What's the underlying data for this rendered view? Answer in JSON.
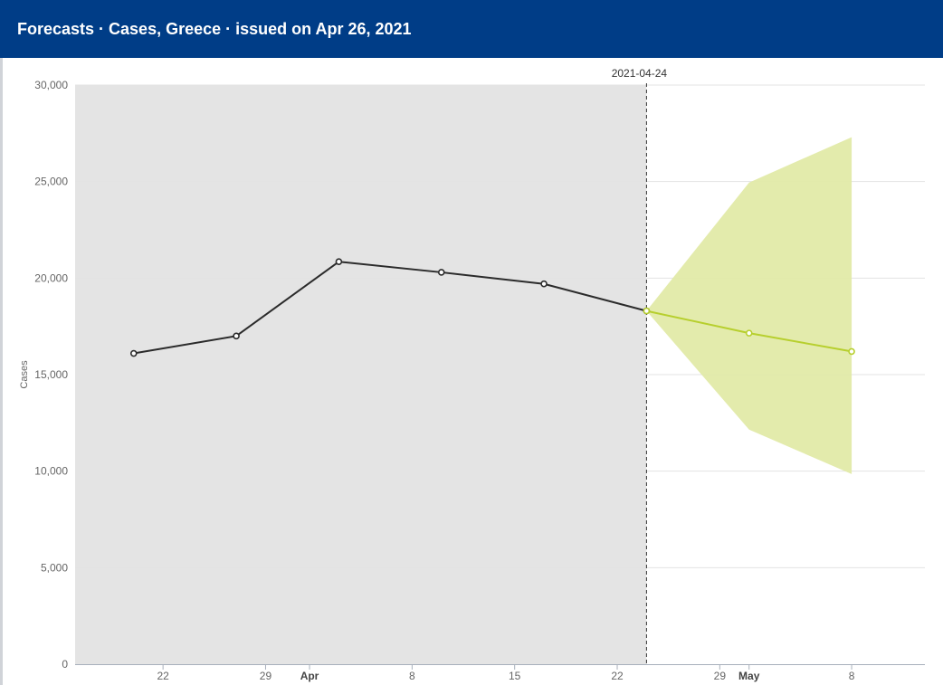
{
  "header": {
    "title": "Forecasts · Cases, Greece  · issued on Apr 26, 2021"
  },
  "colors": {
    "header_bg": "#003d87",
    "observed_line": "#2b2b2b",
    "forecast_line": "#b7cf2e",
    "forecast_band": "#e2eaa8",
    "history_bg": "#e4e4e4"
  },
  "chart_data": {
    "type": "line",
    "ylabel": "Cases",
    "xlabel": "",
    "ylim": [
      0,
      30000
    ],
    "xlim": [
      "2021-03-16",
      "2021-05-13"
    ],
    "y_ticks": [
      0,
      5000,
      10000,
      15000,
      20000,
      25000,
      30000
    ],
    "y_tick_labels": [
      "0",
      "5,000",
      "10,000",
      "15,000",
      "20,000",
      "25,000",
      "30,000"
    ],
    "x_ticks": [
      {
        "date": "2021-03-22",
        "label": "22",
        "bold": false
      },
      {
        "date": "2021-03-29",
        "label": "29",
        "bold": false
      },
      {
        "date": "2021-04-01",
        "label": "Apr",
        "bold": true
      },
      {
        "date": "2021-04-08",
        "label": "8",
        "bold": false
      },
      {
        "date": "2021-04-15",
        "label": "15",
        "bold": false
      },
      {
        "date": "2021-04-22",
        "label": "22",
        "bold": false
      },
      {
        "date": "2021-04-29",
        "label": "29",
        "bold": false
      },
      {
        "date": "2021-05-01",
        "label": "May",
        "bold": true
      },
      {
        "date": "2021-05-08",
        "label": "8",
        "bold": false
      }
    ],
    "grid": true,
    "shaded_history_until": "2021-04-24",
    "reference_line": {
      "date": "2021-04-24",
      "label": "2021-04-24"
    },
    "series": [
      {
        "style": "observed",
        "x": [
          "2021-03-20",
          "2021-03-27",
          "2021-04-03",
          "2021-04-10",
          "2021-04-17",
          "2021-04-24"
        ],
        "y": [
          16100,
          17000,
          20850,
          20300,
          19700,
          18300
        ]
      },
      {
        "style": "forecast",
        "x": [
          "2021-04-24",
          "2021-05-01",
          "2021-05-08"
        ],
        "y": [
          18300,
          17150,
          16200
        ],
        "lower": [
          18300,
          12150,
          9850
        ],
        "upper": [
          18300,
          24950,
          27300
        ]
      }
    ]
  }
}
